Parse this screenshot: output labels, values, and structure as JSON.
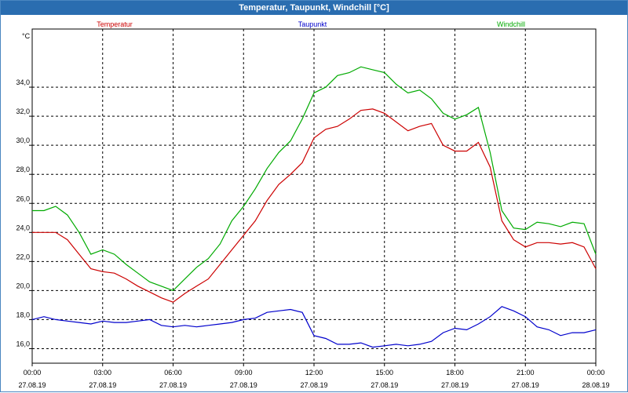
{
  "window": {
    "title": "Temperatur, Taupunkt, Windchill [°C]"
  },
  "chart_data": {
    "type": "line",
    "title": "Temperatur, Taupunkt, Windchill [°C]",
    "ylabel": "°C",
    "ylim": [
      15,
      38
    ],
    "xlim": [
      0,
      24
    ],
    "grid": true,
    "legend": "top",
    "y_ticks": [
      "16,0",
      "18,0",
      "20,0",
      "22,0",
      "24,0",
      "26,0",
      "28,0",
      "30,0",
      "32,0",
      "34,0"
    ],
    "y_tick_values": [
      16,
      18,
      20,
      22,
      24,
      26,
      28,
      30,
      32,
      34
    ],
    "x_ticks": [
      {
        "time": "00:00",
        "date": "27.08.19"
      },
      {
        "time": "03:00",
        "date": "27.08.19"
      },
      {
        "time": "06:00",
        "date": "27.08.19"
      },
      {
        "time": "09:00",
        "date": "27.08.19"
      },
      {
        "time": "12:00",
        "date": "27.08.19"
      },
      {
        "time": "15:00",
        "date": "27.08.19"
      },
      {
        "time": "18:00",
        "date": "27.08.19"
      },
      {
        "time": "21:00",
        "date": "27.08.19"
      },
      {
        "time": "00:00",
        "date": "28.08.19"
      }
    ],
    "x_tick_values": [
      0,
      3,
      6,
      9,
      12,
      15,
      18,
      21,
      24
    ],
    "series": [
      {
        "name": "Temperatur",
        "color": "#cc0000",
        "x": [
          0,
          0.5,
          1,
          1.5,
          2,
          2.5,
          3,
          3.5,
          4,
          4.5,
          5,
          5.5,
          6,
          6.5,
          7,
          7.5,
          8,
          8.5,
          9,
          9.5,
          10,
          10.5,
          11,
          11.5,
          12,
          12.5,
          13,
          13.5,
          14,
          14.5,
          15,
          15.5,
          16,
          16.5,
          17,
          17.5,
          18,
          18.5,
          19,
          19.5,
          20,
          20.5,
          21,
          21.5,
          22,
          22.5,
          23,
          23.5,
          24
        ],
        "values": [
          24.0,
          24.0,
          24.0,
          23.5,
          22.5,
          21.5,
          21.3,
          21.2,
          20.8,
          20.3,
          19.9,
          19.5,
          19.2,
          19.8,
          20.3,
          20.8,
          21.8,
          22.8,
          23.8,
          24.8,
          26.2,
          27.3,
          28.0,
          28.8,
          30.5,
          31.1,
          31.3,
          31.8,
          32.4,
          32.5,
          32.2,
          31.6,
          31.0,
          31.3,
          31.5,
          30.0,
          29.6,
          29.6,
          30.2,
          28.5,
          24.8,
          23.5,
          23.0,
          23.3,
          23.3,
          23.2,
          23.3,
          23.0,
          21.5
        ]
      },
      {
        "name": "Taupunkt",
        "color": "#0000cc",
        "x": [
          0,
          0.5,
          1,
          1.5,
          2,
          2.5,
          3,
          3.5,
          4,
          4.5,
          5,
          5.5,
          6,
          6.5,
          7,
          7.5,
          8,
          8.5,
          9,
          9.5,
          10,
          10.5,
          11,
          11.5,
          12,
          12.5,
          13,
          13.5,
          14,
          14.5,
          15,
          15.5,
          16,
          16.5,
          17,
          17.5,
          18,
          18.5,
          19,
          19.5,
          20,
          20.5,
          21,
          21.5,
          22,
          22.5,
          23,
          23.5,
          24
        ],
        "values": [
          18.0,
          18.2,
          18.0,
          17.9,
          17.8,
          17.7,
          17.9,
          17.8,
          17.8,
          17.9,
          18.0,
          17.6,
          17.5,
          17.6,
          17.5,
          17.6,
          17.7,
          17.8,
          18.0,
          18.1,
          18.5,
          18.6,
          18.7,
          18.5,
          16.9,
          16.7,
          16.3,
          16.3,
          16.4,
          16.1,
          16.2,
          16.3,
          16.2,
          16.3,
          16.5,
          17.1,
          17.4,
          17.3,
          17.7,
          18.2,
          18.9,
          18.6,
          18.2,
          17.5,
          17.3,
          16.9,
          17.1,
          17.1,
          17.3
        ]
      },
      {
        "name": "Windchill",
        "color": "#00aa00",
        "x": [
          0,
          0.5,
          1,
          1.5,
          2,
          2.5,
          3,
          3.5,
          4,
          4.5,
          5,
          5.5,
          6,
          6.5,
          7,
          7.5,
          8,
          8.5,
          9,
          9.5,
          10,
          10.5,
          11,
          11.5,
          12,
          12.5,
          13,
          13.5,
          14,
          14.5,
          15,
          15.5,
          16,
          16.5,
          17,
          17.5,
          18,
          18.5,
          19,
          19.5,
          20,
          20.5,
          21,
          21.5,
          22,
          22.5,
          23,
          23.5,
          24
        ],
        "values": [
          25.5,
          25.5,
          25.8,
          25.2,
          24.0,
          22.5,
          22.8,
          22.5,
          21.8,
          21.2,
          20.6,
          20.3,
          20.0,
          20.8,
          21.6,
          22.2,
          23.2,
          24.8,
          25.8,
          27.0,
          28.4,
          29.5,
          30.3,
          31.8,
          33.6,
          34.0,
          34.8,
          35.0,
          35.4,
          35.2,
          35.0,
          34.2,
          33.6,
          33.8,
          33.2,
          32.2,
          31.8,
          32.1,
          32.6,
          29.5,
          25.5,
          24.3,
          24.2,
          24.7,
          24.6,
          24.4,
          24.7,
          24.6,
          22.5
        ]
      }
    ]
  }
}
